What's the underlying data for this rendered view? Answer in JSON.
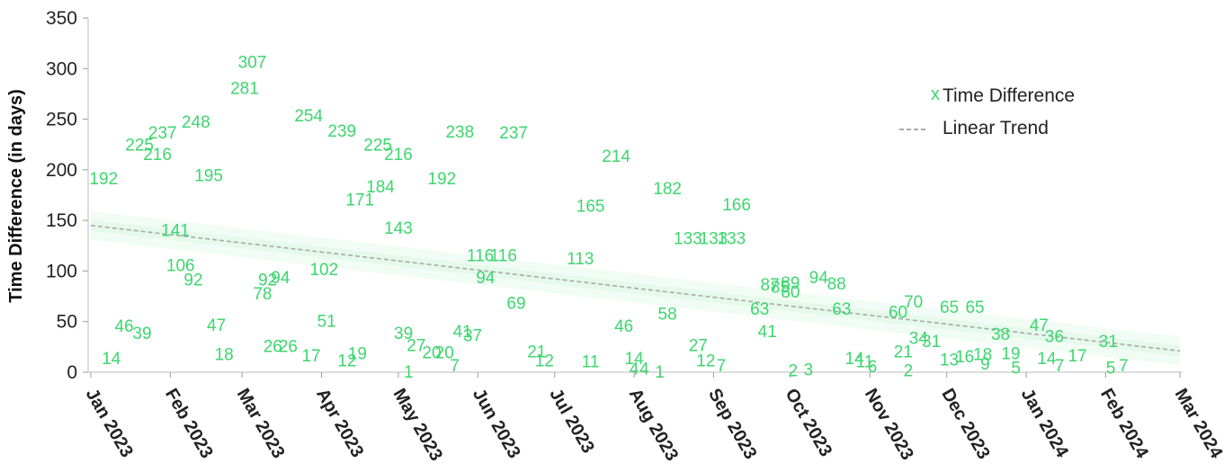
{
  "chart_data": {
    "type": "scatter",
    "title": "",
    "xlabel": "",
    "ylabel": "Time Difference (in days)",
    "ylim": [
      0,
      350
    ],
    "yticks": [
      "0",
      "50",
      "100",
      "150",
      "200",
      "250",
      "300",
      "350"
    ],
    "xlim": [
      "2023-01-01",
      "2024-03-01"
    ],
    "xticks": [
      {
        "label": "Jan 2023",
        "date": "2023-01-01"
      },
      {
        "label": "Feb 2023",
        "date": "2023-02-01"
      },
      {
        "label": "Mar 2023",
        "date": "2023-03-01"
      },
      {
        "label": "Apr 2023",
        "date": "2023-04-01"
      },
      {
        "label": "May 2023",
        "date": "2023-05-01"
      },
      {
        "label": "Jun 2023",
        "date": "2023-06-01"
      },
      {
        "label": "Jul 2023",
        "date": "2023-07-01"
      },
      {
        "label": "Aug 2023",
        "date": "2023-08-01"
      },
      {
        "label": "Sep 2023",
        "date": "2023-09-01"
      },
      {
        "label": "Oct 2023",
        "date": "2023-10-01"
      },
      {
        "label": "Nov 2023",
        "date": "2023-11-01"
      },
      {
        "label": "Dec 2023",
        "date": "2023-12-01"
      },
      {
        "label": "Jan 2024",
        "date": "2024-01-01"
      },
      {
        "label": "Feb 2024",
        "date": "2024-02-01"
      },
      {
        "label": "Mar 2024",
        "date": "2024-03-01"
      }
    ],
    "grid": false,
    "legend_position": "top-right",
    "series": [
      {
        "name": "Time Difference",
        "marker": "x",
        "color": "#3dd66e",
        "points": [
          {
            "date": "2023-01-06",
            "value": 192
          },
          {
            "date": "2023-01-09",
            "value": 14
          },
          {
            "date": "2023-01-14",
            "value": 46
          },
          {
            "date": "2023-01-20",
            "value": 225
          },
          {
            "date": "2023-01-21",
            "value": 39
          },
          {
            "date": "2023-01-27",
            "value": 216
          },
          {
            "date": "2023-01-29",
            "value": 237
          },
          {
            "date": "2023-02-03",
            "value": 141
          },
          {
            "date": "2023-02-05",
            "value": 106
          },
          {
            "date": "2023-02-10",
            "value": 92
          },
          {
            "date": "2023-02-11",
            "value": 248
          },
          {
            "date": "2023-02-16",
            "value": 195
          },
          {
            "date": "2023-02-19",
            "value": 47
          },
          {
            "date": "2023-02-22",
            "value": 18
          },
          {
            "date": "2023-03-02",
            "value": 281
          },
          {
            "date": "2023-03-05",
            "value": 307
          },
          {
            "date": "2023-03-09",
            "value": 78
          },
          {
            "date": "2023-03-11",
            "value": 92
          },
          {
            "date": "2023-03-13",
            "value": 26
          },
          {
            "date": "2023-03-16",
            "value": 94
          },
          {
            "date": "2023-03-19",
            "value": 26
          },
          {
            "date": "2023-03-27",
            "value": 254
          },
          {
            "date": "2023-03-28",
            "value": 17
          },
          {
            "date": "2023-04-02",
            "value": 102
          },
          {
            "date": "2023-04-03",
            "value": 51
          },
          {
            "date": "2023-04-09",
            "value": 239
          },
          {
            "date": "2023-04-11",
            "value": 12
          },
          {
            "date": "2023-04-15",
            "value": 19
          },
          {
            "date": "2023-04-16",
            "value": 171
          },
          {
            "date": "2023-04-23",
            "value": 225
          },
          {
            "date": "2023-04-24",
            "value": 184
          },
          {
            "date": "2023-05-01",
            "value": 216
          },
          {
            "date": "2023-05-01",
            "value": 143
          },
          {
            "date": "2023-05-03",
            "value": 39
          },
          {
            "date": "2023-05-05",
            "value": 1
          },
          {
            "date": "2023-05-08",
            "value": 27
          },
          {
            "date": "2023-05-14",
            "value": 20
          },
          {
            "date": "2023-05-18",
            "value": 192
          },
          {
            "date": "2023-05-19",
            "value": 20
          },
          {
            "date": "2023-05-23",
            "value": 7
          },
          {
            "date": "2023-05-25",
            "value": 238
          },
          {
            "date": "2023-05-26",
            "value": 41
          },
          {
            "date": "2023-05-30",
            "value": 37
          },
          {
            "date": "2023-06-02",
            "value": 116
          },
          {
            "date": "2023-06-04",
            "value": 94
          },
          {
            "date": "2023-06-11",
            "value": 116
          },
          {
            "date": "2023-06-15",
            "value": 237
          },
          {
            "date": "2023-06-16",
            "value": 69
          },
          {
            "date": "2023-06-24",
            "value": 21
          },
          {
            "date": "2023-06-27",
            "value": 12
          },
          {
            "date": "2023-07-11",
            "value": 113
          },
          {
            "date": "2023-07-15",
            "value": 11
          },
          {
            "date": "2023-07-15",
            "value": 165
          },
          {
            "date": "2023-07-25",
            "value": 214
          },
          {
            "date": "2023-07-28",
            "value": 46
          },
          {
            "date": "2023-08-01",
            "value": 14
          },
          {
            "date": "2023-08-01",
            "value": 4
          },
          {
            "date": "2023-08-05",
            "value": 4
          },
          {
            "date": "2023-08-11",
            "value": 1
          },
          {
            "date": "2023-08-14",
            "value": 58
          },
          {
            "date": "2023-08-14",
            "value": 182
          },
          {
            "date": "2023-08-22",
            "value": 133
          },
          {
            "date": "2023-08-26",
            "value": 27
          },
          {
            "date": "2023-08-29",
            "value": 12
          },
          {
            "date": "2023-09-01",
            "value": 133
          },
          {
            "date": "2023-09-04",
            "value": 7
          },
          {
            "date": "2023-09-08",
            "value": 133
          },
          {
            "date": "2023-09-10",
            "value": 166
          },
          {
            "date": "2023-09-19",
            "value": 63
          },
          {
            "date": "2023-09-22",
            "value": 41
          },
          {
            "date": "2023-09-23",
            "value": 87
          },
          {
            "date": "2023-09-27",
            "value": 85
          },
          {
            "date": "2023-10-01",
            "value": 80
          },
          {
            "date": "2023-10-01",
            "value": 89
          },
          {
            "date": "2023-10-02",
            "value": 2
          },
          {
            "date": "2023-10-08",
            "value": 3
          },
          {
            "date": "2023-10-12",
            "value": 94
          },
          {
            "date": "2023-10-19",
            "value": 88
          },
          {
            "date": "2023-10-21",
            "value": 63
          },
          {
            "date": "2023-10-26",
            "value": 14
          },
          {
            "date": "2023-10-30",
            "value": 11
          },
          {
            "date": "2023-11-02",
            "value": 6
          },
          {
            "date": "2023-11-12",
            "value": 60
          },
          {
            "date": "2023-11-14",
            "value": 21
          },
          {
            "date": "2023-11-16",
            "value": 2
          },
          {
            "date": "2023-11-18",
            "value": 70
          },
          {
            "date": "2023-11-20",
            "value": 34
          },
          {
            "date": "2023-11-25",
            "value": 31
          },
          {
            "date": "2023-12-02",
            "value": 65
          },
          {
            "date": "2023-12-02",
            "value": 13
          },
          {
            "date": "2023-12-08",
            "value": 16
          },
          {
            "date": "2023-12-12",
            "value": 65
          },
          {
            "date": "2023-12-15",
            "value": 18
          },
          {
            "date": "2023-12-16",
            "value": 9
          },
          {
            "date": "2023-12-22",
            "value": 38
          },
          {
            "date": "2023-12-26",
            "value": 19
          },
          {
            "date": "2023-12-28",
            "value": 5
          },
          {
            "date": "2024-01-06",
            "value": 47
          },
          {
            "date": "2024-01-09",
            "value": 14
          },
          {
            "date": "2024-01-12",
            "value": 36
          },
          {
            "date": "2024-01-14",
            "value": 7
          },
          {
            "date": "2024-01-21",
            "value": 17
          },
          {
            "date": "2024-02-02",
            "value": 31
          },
          {
            "date": "2024-02-03",
            "value": 5
          },
          {
            "date": "2024-02-08",
            "value": 7
          }
        ]
      },
      {
        "name": "Linear Trend",
        "type": "line",
        "style": "dashed",
        "color": "#aaaaaa",
        "points": [
          {
            "date": "2023-01-01",
            "value": 145
          },
          {
            "date": "2024-03-01",
            "value": 21
          }
        ]
      }
    ]
  }
}
